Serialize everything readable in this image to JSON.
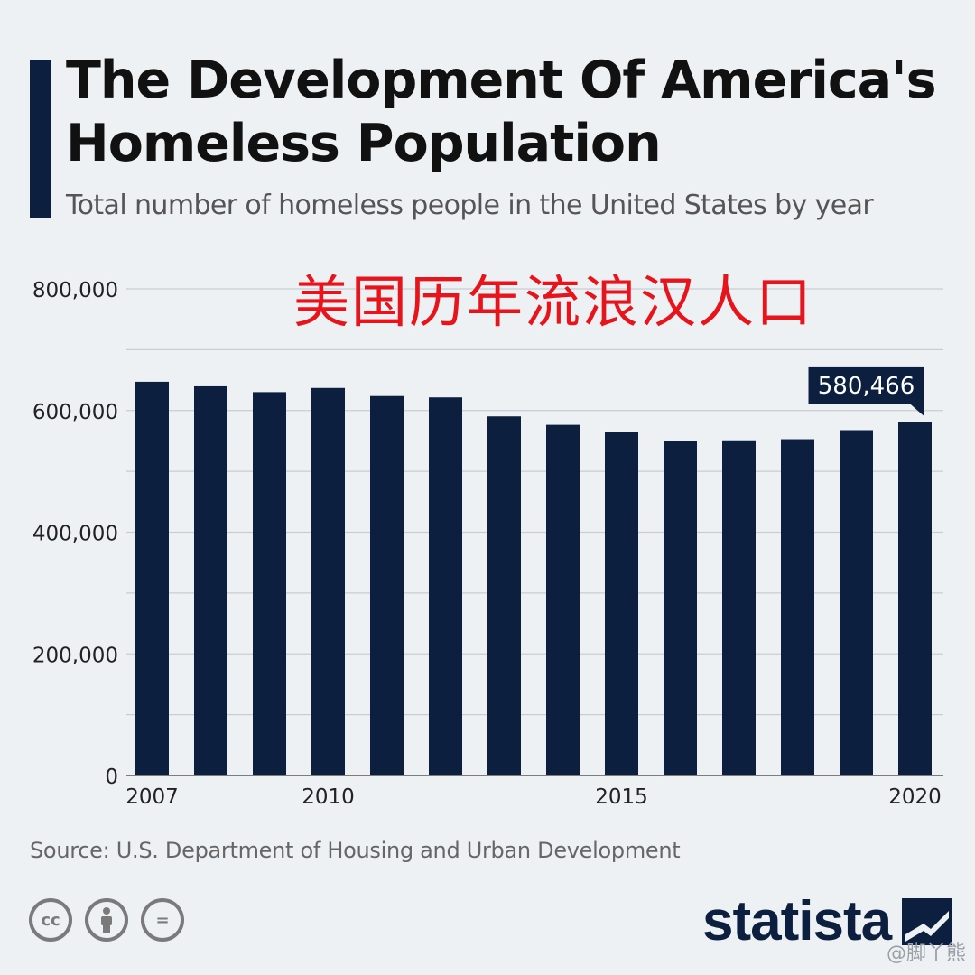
{
  "header": {
    "title": "The Development Of America's Homeless Population",
    "subtitle": "Total number of homeless people in the United States by year"
  },
  "overlay_text": "美国历年流浪汉人口",
  "chart_data": {
    "type": "bar",
    "categories": [
      "2007",
      "2008",
      "2009",
      "2010",
      "2011",
      "2012",
      "2013",
      "2014",
      "2015",
      "2016",
      "2017",
      "2018",
      "2019",
      "2020"
    ],
    "x_tick_labels": [
      "2007",
      "2010",
      "2015",
      "2020"
    ],
    "values": [
      647258,
      639784,
      630227,
      637077,
      623788,
      621553,
      590364,
      576450,
      564708,
      549928,
      550996,
      552830,
      567715,
      580466
    ],
    "ylim": [
      0,
      800000
    ],
    "y_tick_labels": [
      "0",
      "200,000",
      "400,000",
      "600,000",
      "800,000"
    ],
    "y_ticks": [
      0,
      200000,
      400000,
      600000,
      800000
    ],
    "grid_step": 100000,
    "callout": {
      "index": 13,
      "label": "580,466"
    },
    "bar_color": "#0c1f3f",
    "grid": true
  },
  "footer": {
    "source": "Source: U.S. Department of Housing and Urban Development",
    "license_icons": [
      "cc-icon",
      "attribution-icon",
      "no-derivatives-icon"
    ],
    "license_labels": [
      "cc",
      "",
      "="
    ],
    "logo_text": "statista",
    "watermark": "@脚丫熊"
  }
}
